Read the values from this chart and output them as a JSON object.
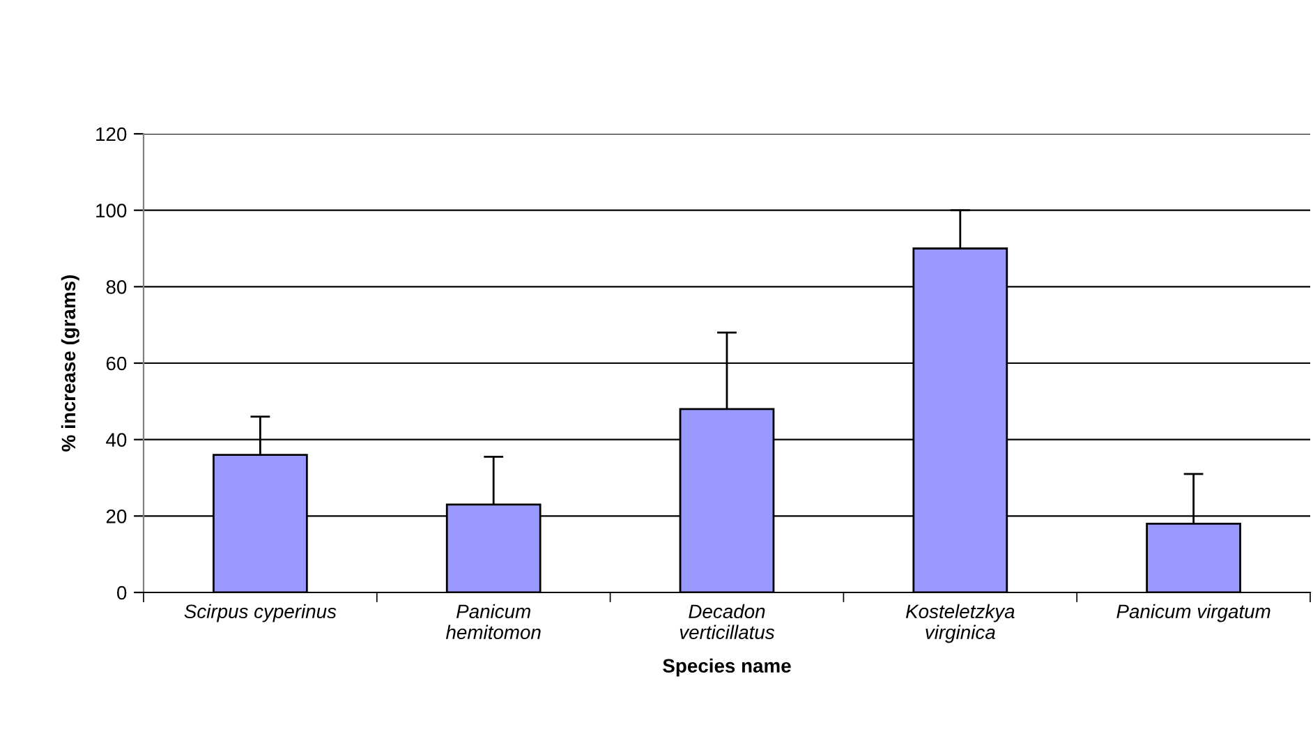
{
  "chart_data": {
    "type": "bar",
    "xlabel": "Species name",
    "ylabel": "% increase (grams)",
    "categories": [
      "Scirpus cyperinus",
      "Panicum\nhemitomon",
      "Decadon\nverticillatus",
      "Kosteletzkya\nvirginica",
      "Panicum virgatum"
    ],
    "values": [
      36,
      23,
      48,
      90,
      18
    ],
    "errors": [
      10,
      12.5,
      20,
      10,
      13
    ],
    "color": "#9999ff",
    "ylim": [
      0,
      120
    ],
    "yticks": [
      0,
      20,
      40,
      60,
      80,
      100,
      120
    ],
    "grid": "y"
  }
}
